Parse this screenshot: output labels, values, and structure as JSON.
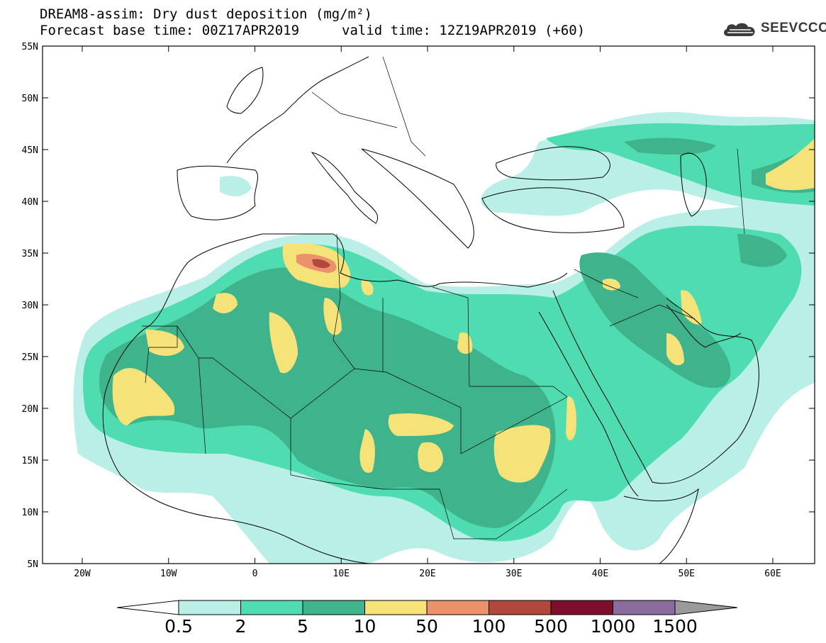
{
  "header": {
    "title_line1": "DREAM8-assim: Dry dust deposition (mg/m²)",
    "title_line2_base": "Forecast base time: 00Z17APR2019",
    "title_line2_valid": "valid time: 12Z19APR2019 (+60)",
    "logo_text": "SEEVCCC",
    "logo_icon": "cloud-icon"
  },
  "axes": {
    "lat_labels": [
      "55N",
      "50N",
      "45N",
      "40N",
      "35N",
      "30N",
      "25N",
      "20N",
      "15N",
      "10N",
      "5N"
    ],
    "lon_labels": [
      "20W",
      "10W",
      "0",
      "10E",
      "20E",
      "30E",
      "40E",
      "50E",
      "60E"
    ]
  },
  "colorbar": {
    "labels": [
      "0.5",
      "2",
      "5",
      "10",
      "50",
      "100",
      "500",
      "1000",
      "1500"
    ],
    "colors": [
      "#b9efe6",
      "#4fdcb0",
      "#3fb48c",
      "#f5e37a",
      "#eb916b",
      "#b0493c",
      "#7d0f2d",
      "#8b6c9e",
      "#9a9a9a"
    ],
    "under_color": "#ffffff",
    "over_color": "#9a9a9a"
  }
}
